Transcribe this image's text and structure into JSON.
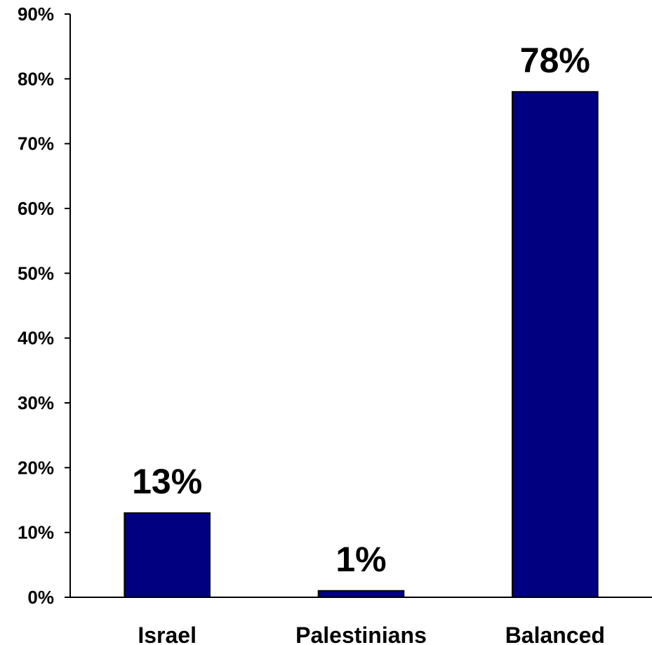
{
  "chart_data": {
    "type": "bar",
    "categories": [
      "Israel",
      "Palestinians",
      "Balanced"
    ],
    "values": [
      13,
      1,
      78
    ],
    "data_labels": [
      "13%",
      "1%",
      "78%"
    ],
    "title": "",
    "xlabel": "",
    "ylabel": "",
    "ylim": [
      0,
      90
    ],
    "yticks": [
      0,
      10,
      20,
      30,
      40,
      50,
      60,
      70,
      80,
      90
    ],
    "ytick_labels": [
      "0%",
      "10%",
      "20%",
      "30%",
      "40%",
      "50%",
      "60%",
      "70%",
      "80%",
      "90%"
    ],
    "grid": false,
    "legend": "none",
    "bar_color": "#000080"
  }
}
